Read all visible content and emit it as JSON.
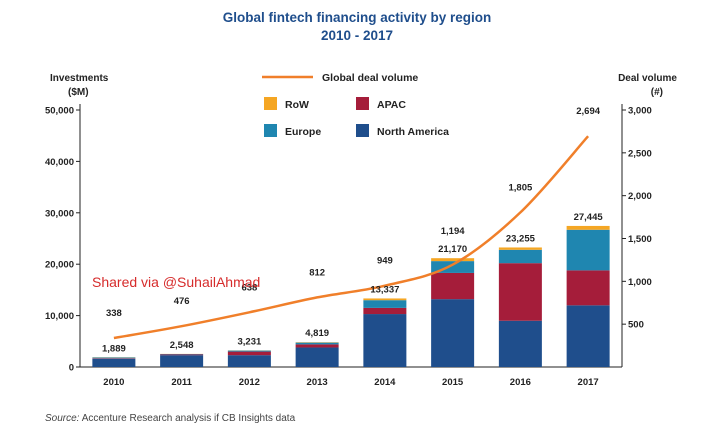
{
  "chart_data": {
    "type": "bar",
    "title": "Global fintech financing activity by region",
    "subtitle": "2010 - 2017",
    "ylabel_left": [
      "Investments",
      "($M)"
    ],
    "ylabel_right": [
      "Deal volume",
      "(#)"
    ],
    "ylim_left": [
      0,
      50000
    ],
    "ylim_right": [
      0,
      3000
    ],
    "yticks_left": [
      "0",
      "10,000",
      "20,000",
      "30,000",
      "40,000",
      "50,000"
    ],
    "yticks_right": [
      "500",
      "1,000",
      "1,500",
      "2,000",
      "2,500",
      "3,000"
    ],
    "categories": [
      "2010",
      "2011",
      "2012",
      "2013",
      "2014",
      "2015",
      "2016",
      "2017"
    ],
    "series": [
      {
        "name": "North America",
        "color": "#1f4e8c",
        "values": [
          1600,
          2300,
          2300,
          3800,
          10300,
          13200,
          9000,
          12000
        ]
      },
      {
        "name": "APAC",
        "color": "#a51d3a",
        "values": [
          100,
          150,
          700,
          600,
          1200,
          5100,
          11200,
          6800
        ]
      },
      {
        "name": "Europe",
        "color": "#1f86b0",
        "values": [
          150,
          80,
          200,
          350,
          1500,
          2300,
          2600,
          7900
        ]
      },
      {
        "name": "RoW",
        "color": "#f5a623",
        "values": [
          39,
          18,
          31,
          69,
          337,
          570,
          455,
          745
        ]
      }
    ],
    "totals": [
      "1,889",
      "2,548",
      "3,231",
      "4,819",
      "13,337",
      "21,170",
      "23,255",
      "27,445"
    ],
    "line": {
      "name": "Global deal volume",
      "color": "#f07f2a",
      "values": [
        338,
        476,
        638,
        812,
        949,
        1194,
        1805,
        2694
      ],
      "labels": [
        "338",
        "476",
        "638",
        "812",
        "949",
        "1,194",
        "1,805",
        "2,694"
      ]
    },
    "legend": [
      "RoW",
      "APAC",
      "Europe",
      "North America"
    ],
    "source_label": "Source:",
    "source_text": " Accenture Research analysis if CB Insights data",
    "watermark": "Shared via @SuhailAhmad"
  }
}
